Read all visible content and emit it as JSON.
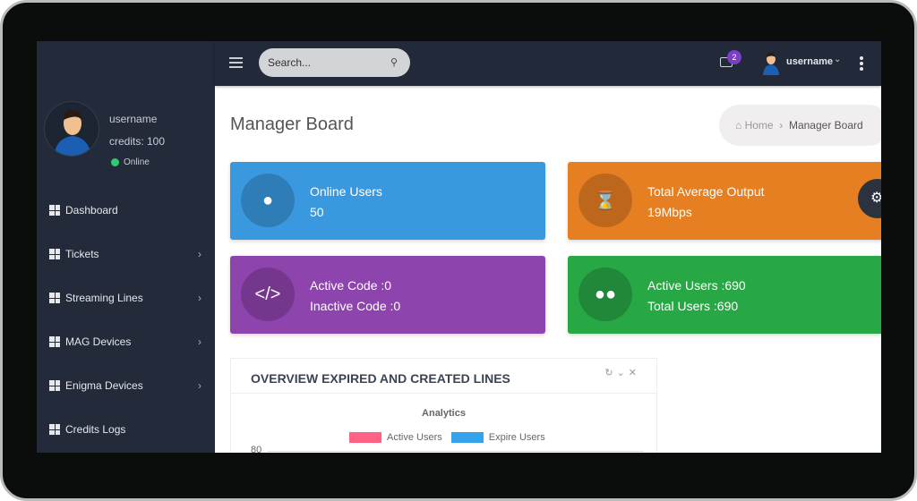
{
  "topbar": {
    "search_placeholder": "Search...",
    "mail_count": "2",
    "username": "username"
  },
  "sidebar": {
    "username": "username",
    "credits": "credits: 100",
    "status": "Online",
    "items": [
      {
        "label": "Dashboard"
      },
      {
        "label": "Tickets"
      },
      {
        "label": "Streaming Lines"
      },
      {
        "label": "MAG Devices"
      },
      {
        "label": "Enigma Devices"
      },
      {
        "label": "Credits Logs"
      }
    ]
  },
  "page": {
    "title": "Manager Board",
    "breadcrumb": {
      "home": "Home",
      "current": "Manager Board"
    }
  },
  "cards": [
    {
      "line1": "Online Users",
      "line2": "50",
      "color": "#3a99de",
      "icon": "user-icon"
    },
    {
      "line1": "Total Average Output",
      "line2": "19Mbps",
      "color": "#e67e22",
      "icon": "spinner-icon"
    },
    {
      "line1": "Active Code :0",
      "line2": "Inactive Code :0",
      "color": "#8e44ad",
      "icon": "code-icon"
    },
    {
      "line1": "Active Users :690",
      "line2": "Total Users :690",
      "color": "#28a745",
      "icon": "users-icon"
    }
  ],
  "panel": {
    "title": "OVERVIEW EXPIRED AND CREATED LINES"
  },
  "chart_data": {
    "type": "bar",
    "title": "Analytics",
    "series": [
      {
        "name": "Active Users",
        "color": "#ff6384"
      },
      {
        "name": "Expire Users",
        "color": "#36a2eb"
      }
    ],
    "y_ticks": [
      "80"
    ]
  }
}
